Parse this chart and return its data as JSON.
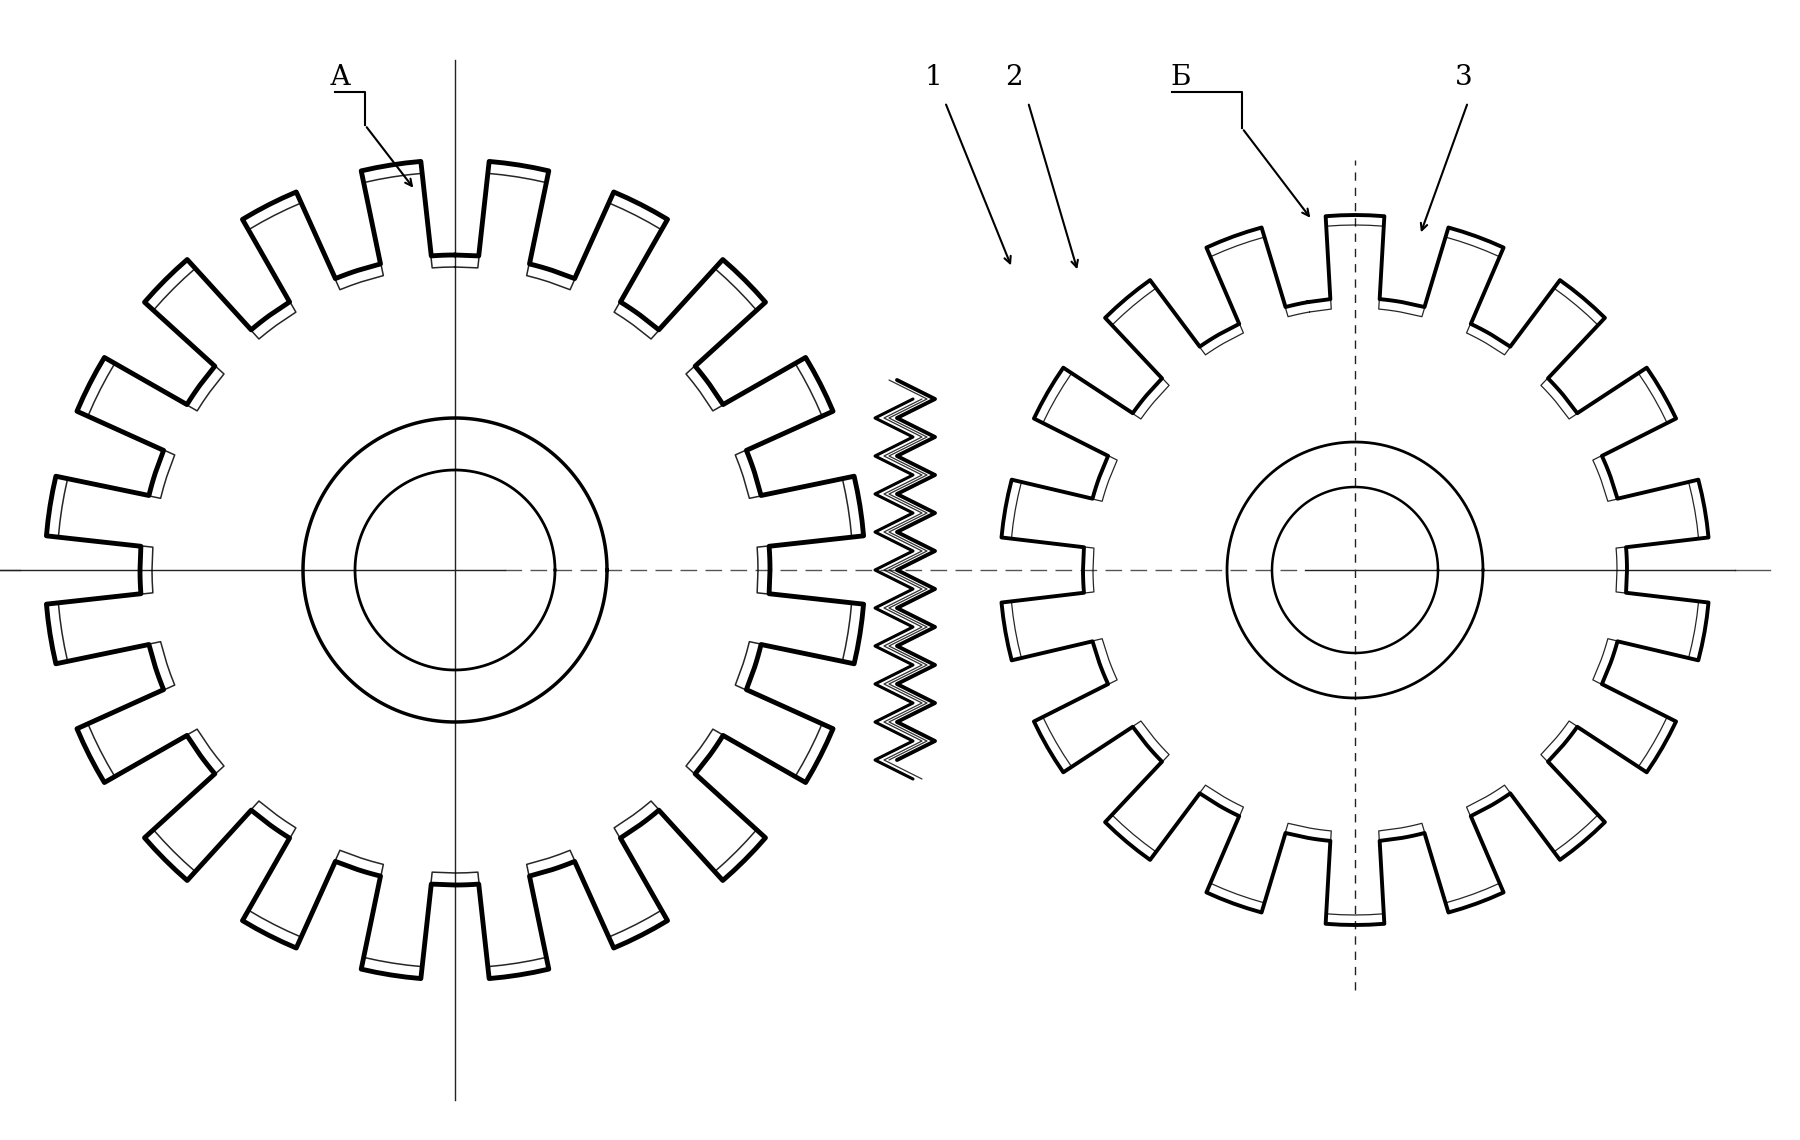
{
  "bg_color": "#ffffff",
  "lc": "#000000",
  "g1x": 4.55,
  "g1y": 5.7,
  "g2x": 13.55,
  "g2y": 5.7,
  "g1_n": 20,
  "g1_Ro": 4.1,
  "g1_Rr": 3.15,
  "g1_hub_o": 1.52,
  "g1_hub_i": 1.0,
  "g2_n": 18,
  "g2_Ro": 3.55,
  "g2_Rr": 2.72,
  "g2_hub_o": 1.28,
  "g2_hub_i": 0.83,
  "label_A": "А",
  "label_B": "Б",
  "label_1": "1",
  "label_2": "2",
  "label_3": "3",
  "figsize": [
    18.0,
    11.4
  ],
  "dpi": 100
}
